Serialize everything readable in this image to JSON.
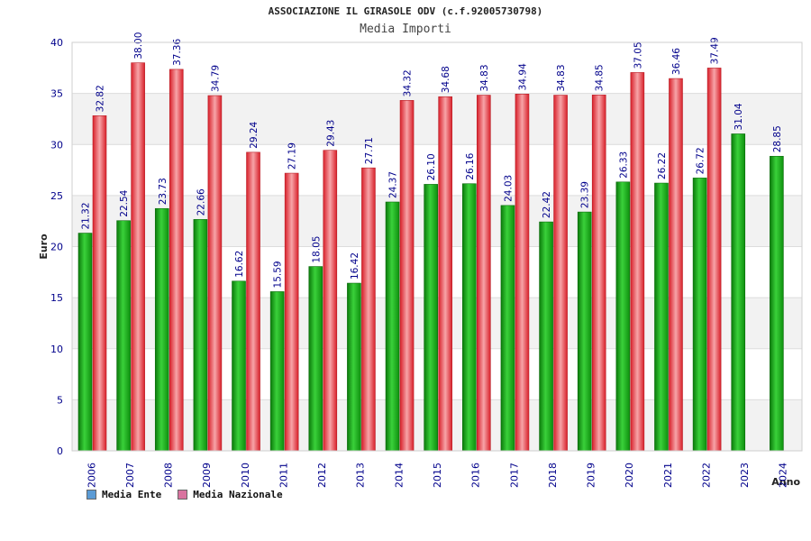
{
  "title": "ASSOCIAZIONE IL GIRASOLE ODV (c.f.92005730798)",
  "subtitle": "Media Importi",
  "colors": {
    "ente_swatch": "#5b9bd5",
    "nazionale_swatch": "#d9739f",
    "ente_bar": "#1fa11f",
    "nazionale_bar": "#e8343e",
    "axis_text": "#00008b"
  },
  "legend": [
    {
      "label": "Media Ente",
      "swatch": "#5b9bd5"
    },
    {
      "label": "Media Nazionale",
      "swatch": "#d9739f"
    }
  ],
  "chart_data": {
    "type": "bar",
    "title": "ASSOCIAZIONE IL GIRASOLE ODV (c.f.92005730798)",
    "subtitle": "Media Importi",
    "xlabel": "Anno",
    "ylabel": "Euro",
    "ylim": [
      0,
      40
    ],
    "yticks": [
      0,
      5,
      10,
      15,
      20,
      25,
      30,
      35,
      40
    ],
    "grid": true,
    "legend_position": "bottom-left",
    "categories": [
      "2006",
      "2007",
      "2008",
      "2009",
      "2010",
      "2011",
      "2012",
      "2013",
      "2014",
      "2015",
      "2016",
      "2017",
      "2018",
      "2019",
      "2020",
      "2021",
      "2022",
      "2023",
      "2024"
    ],
    "series": [
      {
        "name": "Media Ente",
        "values": [
          21.32,
          22.54,
          23.73,
          22.66,
          16.62,
          15.59,
          18.05,
          16.42,
          24.37,
          26.1,
          26.16,
          24.03,
          22.42,
          23.39,
          26.33,
          26.22,
          26.72,
          31.04,
          28.85
        ],
        "labels": [
          "21.32",
          "22.54",
          "23.73",
          "22.66",
          "16.62",
          "15.59",
          "18.05",
          "16.42",
          "24.37",
          "26.10",
          "26.16",
          "24.03",
          "22.42",
          "23.39",
          "26.33",
          "26.22",
          "26.72",
          "31.04",
          "28.85"
        ]
      },
      {
        "name": "Media Nazionale",
        "values": [
          32.82,
          38.0,
          37.36,
          34.79,
          29.24,
          27.19,
          29.43,
          27.71,
          34.32,
          34.68,
          34.83,
          34.94,
          34.83,
          34.85,
          37.05,
          36.46,
          37.49,
          null,
          null
        ],
        "labels": [
          "32.82",
          "38.00",
          "37.36",
          "34.79",
          "29.24",
          "27.19",
          "29.43",
          "27.71",
          "34.32",
          "34.68",
          "34.83",
          "34.94",
          "34.83",
          "34.85",
          "37.05",
          "36.46",
          "37.49",
          "",
          ""
        ]
      }
    ]
  }
}
